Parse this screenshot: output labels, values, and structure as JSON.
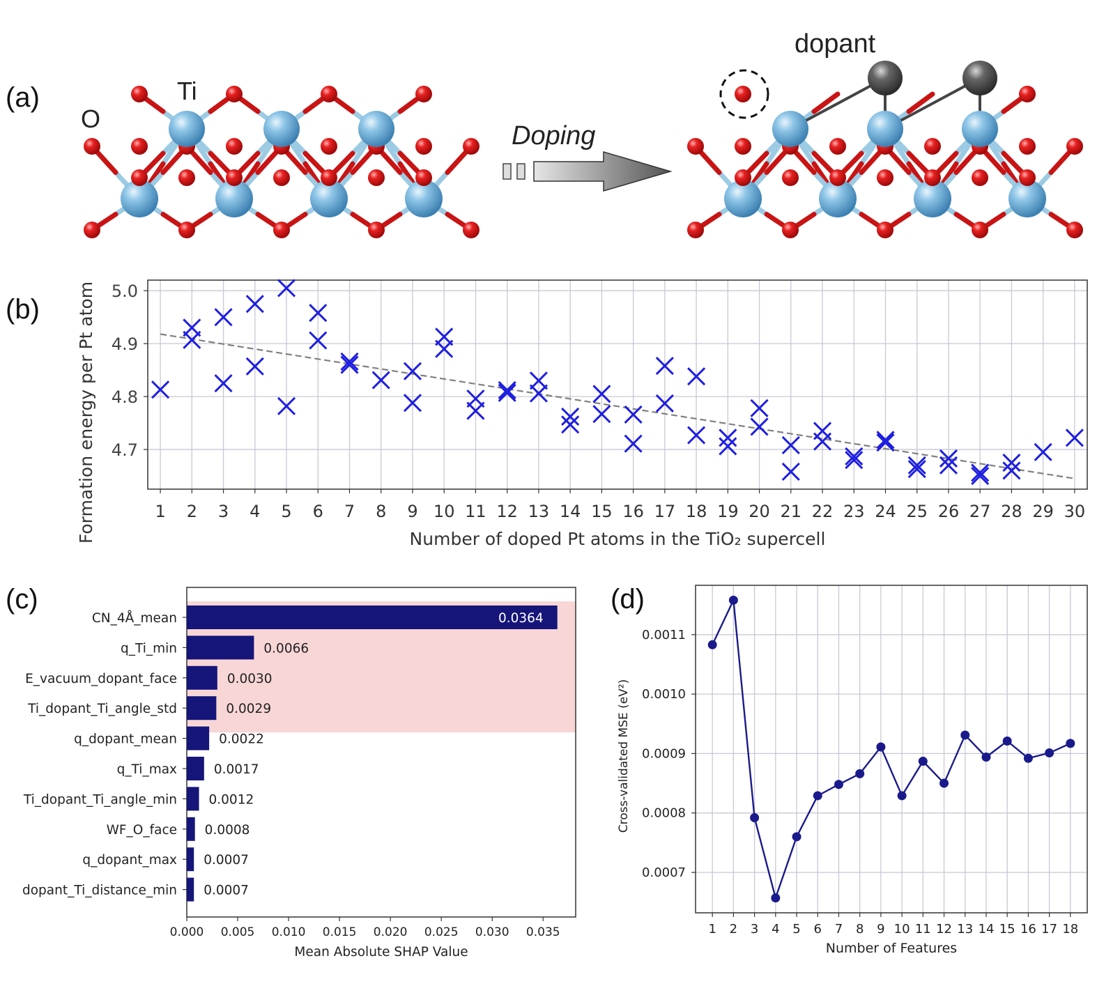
{
  "panel_a": {
    "label": "(a)",
    "atom_o": "O",
    "atom_ti": "Ti",
    "arrow_label": "Doping",
    "dopant_label": "dopant",
    "colors": {
      "ti": "#6aa9d2",
      "o": "#d81818",
      "dopant": "#555555",
      "bond": "#a9d3e8"
    }
  },
  "panel_b": {
    "label": "(b)"
  },
  "panel_c": {
    "label": "(c)"
  },
  "panel_d": {
    "label": "(d)"
  },
  "chart_data": [
    {
      "id": "b",
      "type": "scatter",
      "title": "",
      "xlabel": "Number of doped Pt atoms in the TiO₂ supercell",
      "ylabel": "Formation energy per Pt atom",
      "xlim": [
        0.6,
        30.4
      ],
      "ylim": [
        4.625,
        5.02
      ],
      "xticks": [
        1,
        2,
        3,
        4,
        5,
        6,
        7,
        8,
        9,
        10,
        11,
        12,
        13,
        14,
        15,
        16,
        17,
        18,
        19,
        20,
        21,
        22,
        23,
        24,
        25,
        26,
        27,
        28,
        29,
        30
      ],
      "yticks": [
        4.7,
        4.8,
        4.9,
        5.0
      ],
      "ytick_labels": [
        "4.7",
        "4.8",
        "4.9",
        "5.0"
      ],
      "marker": "x",
      "color": "#1f1fe0",
      "grid": true,
      "trend_line": {
        "x": [
          1,
          30
        ],
        "y": [
          4.918,
          4.645
        ],
        "style": "dashed",
        "color": "#808080"
      },
      "points": [
        [
          1,
          4.813
        ],
        [
          2,
          4.93
        ],
        [
          2,
          4.907
        ],
        [
          3,
          4.95
        ],
        [
          3,
          4.825
        ],
        [
          4,
          4.975
        ],
        [
          4,
          4.857
        ],
        [
          5,
          5.005
        ],
        [
          5,
          4.782
        ],
        [
          6,
          4.958
        ],
        [
          6,
          4.906
        ],
        [
          7,
          4.866
        ],
        [
          7,
          4.86
        ],
        [
          8,
          4.831
        ],
        [
          9,
          4.848
        ],
        [
          9,
          4.788
        ],
        [
          10,
          4.913
        ],
        [
          10,
          4.89
        ],
        [
          11,
          4.796
        ],
        [
          11,
          4.773
        ],
        [
          12,
          4.812
        ],
        [
          12,
          4.807
        ],
        [
          13,
          4.83
        ],
        [
          13,
          4.806
        ],
        [
          14,
          4.762
        ],
        [
          14,
          4.747
        ],
        [
          15,
          4.805
        ],
        [
          15,
          4.767
        ],
        [
          16,
          4.766
        ],
        [
          16,
          4.711
        ],
        [
          17,
          4.858
        ],
        [
          17,
          4.787
        ],
        [
          18,
          4.838
        ],
        [
          18,
          4.727
        ],
        [
          19,
          4.722
        ],
        [
          19,
          4.706
        ],
        [
          20,
          4.778
        ],
        [
          20,
          4.743
        ],
        [
          21,
          4.708
        ],
        [
          21,
          4.658
        ],
        [
          22,
          4.735
        ],
        [
          22,
          4.715
        ],
        [
          23,
          4.687
        ],
        [
          23,
          4.68
        ],
        [
          24,
          4.718
        ],
        [
          24,
          4.713
        ],
        [
          25,
          4.67
        ],
        [
          25,
          4.663
        ],
        [
          26,
          4.683
        ],
        [
          26,
          4.67
        ],
        [
          27,
          4.656
        ],
        [
          27,
          4.65
        ],
        [
          28,
          4.675
        ],
        [
          28,
          4.66
        ],
        [
          29,
          4.695
        ],
        [
          30,
          4.722
        ]
      ]
    },
    {
      "id": "c",
      "type": "bar",
      "orientation": "horizontal",
      "xlabel": "Mean Absolute SHAP Value",
      "ylabel": "",
      "xlim": [
        0,
        0.0382
      ],
      "xticks": [
        0.0,
        0.005,
        0.01,
        0.015,
        0.02,
        0.025,
        0.03,
        0.035
      ],
      "xtick_labels": [
        "0.000",
        "0.005",
        "0.010",
        "0.015",
        "0.020",
        "0.025",
        "0.030",
        "0.035"
      ],
      "categories": [
        "CN_4Å_mean",
        "q_Ti_min",
        "E_vacuum_dopant_face",
        "Ti_dopant_Ti_angle_std",
        "q_dopant_mean",
        "q_Ti_max",
        "Ti_dopant_Ti_angle_min",
        "WF_O_face",
        "q_dopant_max",
        "dopant_Ti_distance_min"
      ],
      "values": [
        0.0364,
        0.0066,
        0.003,
        0.0029,
        0.0022,
        0.0017,
        0.0012,
        0.0008,
        0.0007,
        0.0007
      ],
      "value_labels": [
        "0.0364",
        "0.0066",
        "0.0030",
        "0.0029",
        "0.0022",
        "0.0017",
        "0.0012",
        "0.0008",
        "0.0007",
        "0.0007"
      ],
      "bar_color": "#15157a",
      "highlight": {
        "first_n": 4,
        "color": "#f9d6d6"
      }
    },
    {
      "id": "d",
      "type": "line",
      "xlabel": "Number of Features",
      "ylabel": "Cross-validated MSE (eV²)",
      "xlim": [
        0.2,
        18.8
      ],
      "ylim": [
        0.000632,
        0.001183
      ],
      "x": [
        1,
        2,
        3,
        4,
        5,
        6,
        7,
        8,
        9,
        10,
        11,
        12,
        13,
        14,
        15,
        16,
        17,
        18
      ],
      "y": [
        0.001083,
        0.001158,
        0.000792,
        0.000657,
        0.00076,
        0.000829,
        0.000848,
        0.000866,
        0.000911,
        0.000829,
        0.000887,
        0.00085,
        0.000931,
        0.000894,
        0.000921,
        0.000892,
        0.000901,
        0.000917
      ],
      "yticks": [
        0.0007,
        0.0008,
        0.0009,
        0.001,
        0.0011
      ],
      "ytick_labels": [
        "0.0007",
        "0.0008",
        "0.0009",
        "0.0010",
        "0.0011"
      ],
      "color": "#1a1a8c",
      "marker": "o",
      "grid": true
    }
  ]
}
